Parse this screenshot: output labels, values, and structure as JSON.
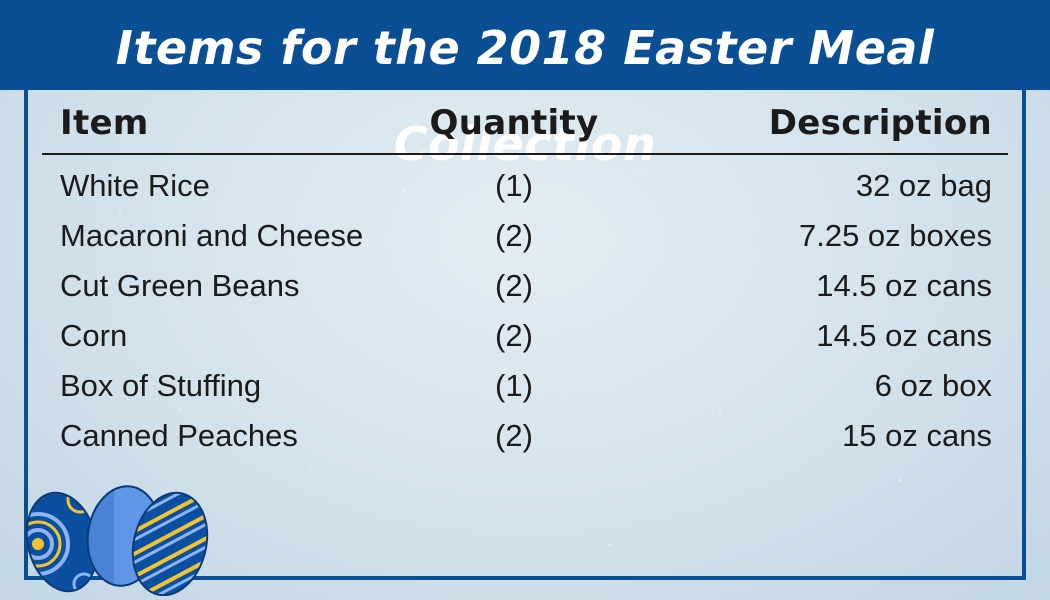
{
  "title": "Items for the 2018 Easter Meal Collection",
  "columns": {
    "item": "Item",
    "quantity": "Quantity",
    "description": "Description"
  },
  "rows": [
    {
      "item": "White Rice",
      "quantity": "(1)",
      "description": "32 oz bag"
    },
    {
      "item": "Macaroni and Cheese",
      "quantity": "(2)",
      "description": "7.25 oz boxes"
    },
    {
      "item": "Cut Green Beans",
      "quantity": "(2)",
      "description": "14.5 oz cans"
    },
    {
      "item": "Corn",
      "quantity": "(2)",
      "description": "14.5 oz cans"
    },
    {
      "item": "Box of Stuffing",
      "quantity": "(1)",
      "description": "6 oz box"
    },
    {
      "item": "Canned Peaches",
      "quantity": "(2)",
      "description": "15 oz cans"
    }
  ],
  "colors": {
    "banner": "#0a4f94",
    "background": "#cfe0ec",
    "text": "#1b1b1b"
  },
  "decoration": "easter-eggs-icon"
}
